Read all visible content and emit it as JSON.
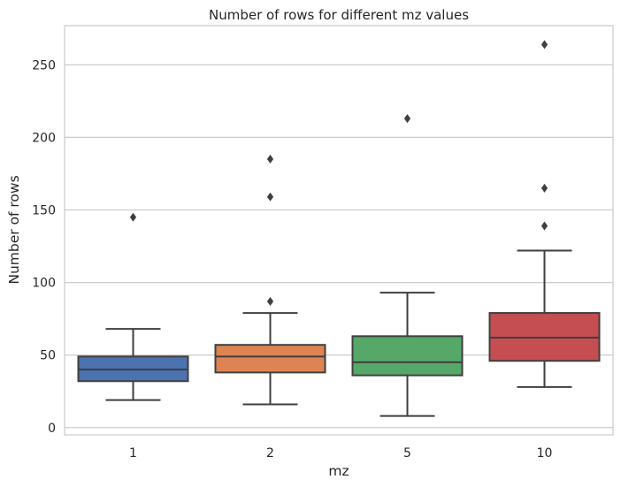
{
  "chart_data": {
    "type": "box",
    "title": "Number of rows for different mz values",
    "xlabel": "mz",
    "ylabel": "Number of rows",
    "ylim": [
      -5,
      277
    ],
    "yticks": [
      0,
      50,
      100,
      150,
      200,
      250
    ],
    "grid": true,
    "categories": [
      "1",
      "2",
      "5",
      "10"
    ],
    "boxes": [
      {
        "category": "1",
        "color": "#4c72b0",
        "whisker_low": 19,
        "q1": 32,
        "median": 40,
        "q3": 49,
        "whisker_high": 68,
        "outliers": [
          145
        ]
      },
      {
        "category": "2",
        "color": "#dd8452",
        "whisker_low": 16,
        "q1": 38,
        "median": 49,
        "q3": 57,
        "whisker_high": 79,
        "outliers": [
          87,
          159,
          185
        ]
      },
      {
        "category": "5",
        "color": "#55a868",
        "whisker_low": 8,
        "q1": 36,
        "median": 45,
        "q3": 63,
        "whisker_high": 93,
        "outliers": [
          213
        ]
      },
      {
        "category": "10",
        "color": "#c44e52",
        "whisker_low": 28,
        "q1": 46,
        "median": 62,
        "q3": 79,
        "whisker_high": 122,
        "outliers": [
          139,
          165,
          264
        ]
      }
    ]
  }
}
